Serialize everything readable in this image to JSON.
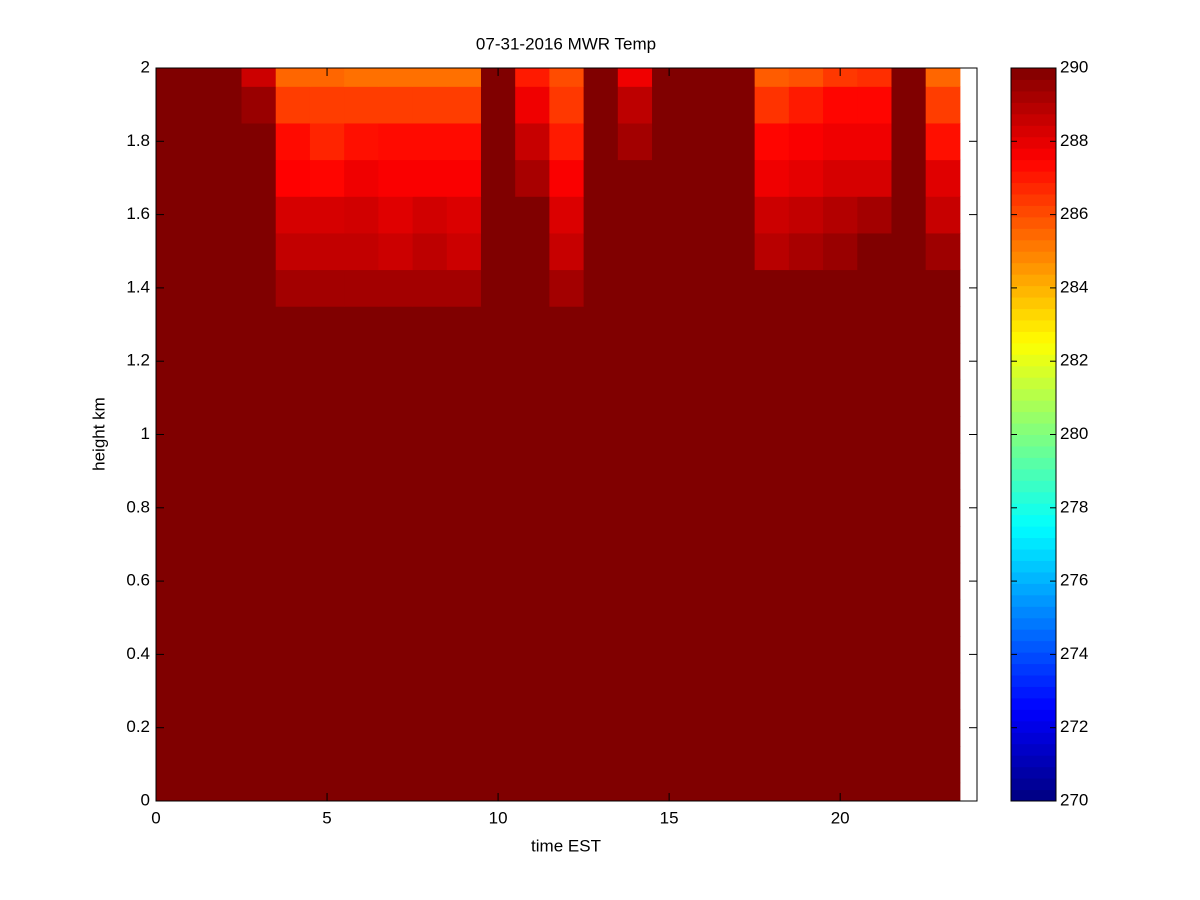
{
  "chart_data": {
    "type": "heatmap",
    "title": "07-31-2016 MWR Temp",
    "x_label": "time EST",
    "y_label": "height km",
    "x": [
      0,
      1,
      2,
      3,
      4,
      5,
      6,
      7,
      8,
      9,
      10,
      11,
      12,
      13,
      14,
      15,
      16,
      17,
      18,
      19,
      20,
      21,
      22,
      23
    ],
    "y": [
      0,
      0.1,
      0.2,
      0.3,
      0.4,
      0.5,
      0.6,
      0.7,
      0.8,
      0.9,
      1,
      1.1,
      1.2,
      1.3,
      1.4,
      1.5,
      1.6,
      1.7,
      1.8,
      1.9,
      2
    ],
    "z": [
      [
        290,
        290,
        290,
        290,
        290,
        290,
        290,
        290,
        290,
        290,
        290,
        290,
        290,
        290,
        290,
        290,
        290,
        290,
        290,
        290,
        290,
        290,
        290,
        290
      ],
      [
        290,
        290,
        290,
        290,
        290,
        290,
        290,
        290,
        290,
        290,
        290,
        290,
        290,
        290,
        290,
        290,
        290,
        290,
        290,
        290,
        290,
        290,
        290,
        290
      ],
      [
        290,
        290,
        290,
        290,
        290,
        290,
        290,
        290,
        290,
        290,
        290,
        290,
        290,
        290,
        290,
        290,
        290,
        290,
        290,
        290,
        290,
        290,
        290,
        290
      ],
      [
        290,
        290,
        290,
        290,
        290,
        290,
        290,
        290,
        290,
        290,
        290,
        290,
        290,
        290,
        290,
        290,
        290,
        290,
        290,
        290,
        290,
        290,
        290,
        290
      ],
      [
        290,
        290,
        290,
        290,
        290,
        290,
        290,
        290,
        290,
        290,
        290,
        290,
        290,
        290,
        290,
        290,
        290,
        290,
        290,
        290,
        290,
        290,
        290,
        290
      ],
      [
        290,
        290,
        290,
        290,
        290,
        290,
        290,
        290,
        290,
        290,
        290,
        290,
        290,
        290,
        290,
        290,
        290,
        290,
        290,
        290,
        290,
        290,
        290,
        290
      ],
      [
        290,
        290,
        290,
        290,
        290,
        290,
        290,
        290,
        290,
        290,
        290,
        290,
        290,
        290,
        290,
        290,
        290,
        290,
        290,
        290,
        290,
        290,
        290,
        290
      ],
      [
        290,
        290,
        290,
        290,
        290,
        290,
        290,
        290,
        290,
        290,
        290,
        290,
        290,
        290,
        290,
        290,
        290,
        290,
        290,
        290,
        290,
        290,
        290,
        290
      ],
      [
        290,
        290,
        290,
        290,
        290,
        290,
        290,
        290,
        290,
        290,
        290,
        290,
        290,
        290,
        290,
        290,
        290,
        290,
        290,
        290,
        290,
        290,
        290,
        290
      ],
      [
        290,
        290,
        290,
        290,
        290,
        290,
        290,
        290,
        290,
        290,
        290,
        290,
        290,
        290,
        290,
        290,
        290,
        290,
        290,
        290,
        290,
        290,
        290,
        290
      ],
      [
        290,
        290,
        290,
        290,
        290,
        290,
        290,
        290,
        290,
        290,
        290,
        290,
        290,
        290,
        290,
        290,
        290,
        290,
        290,
        290,
        290,
        290,
        290,
        290
      ],
      [
        290,
        290,
        290,
        290,
        290,
        290,
        290,
        290,
        290,
        290,
        290,
        290,
        290,
        290,
        290,
        290,
        290,
        290,
        290,
        290,
        290,
        290,
        290,
        290
      ],
      [
        290,
        290,
        290,
        290,
        290,
        290,
        290,
        290,
        290,
        290,
        290,
        290,
        290,
        290,
        290,
        290,
        290,
        290,
        290,
        290,
        290,
        290,
        290,
        290
      ],
      [
        290,
        290,
        290,
        290,
        290,
        290,
        290,
        290,
        290,
        290,
        290,
        290,
        290,
        290,
        290,
        290,
        290,
        290,
        290,
        290,
        290,
        290,
        290,
        290
      ],
      [
        290,
        290,
        290,
        290,
        289.3,
        289.3,
        289.3,
        289.3,
        289.3,
        289.3,
        290,
        290,
        289.3,
        290,
        290,
        290,
        290,
        290,
        290,
        290,
        290,
        290,
        290,
        290
      ],
      [
        290,
        290,
        290,
        290,
        288.7,
        288.7,
        288.7,
        288.5,
        288.8,
        288.5,
        290,
        290,
        288.6,
        290,
        290,
        290,
        290,
        290,
        288.9,
        289.2,
        289.5,
        290,
        290,
        289.4
      ],
      [
        290,
        290,
        290,
        290,
        288.3,
        288.3,
        288.4,
        288.1,
        288.4,
        288.2,
        290,
        290,
        288.2,
        290,
        290,
        290,
        290,
        290,
        288.5,
        288.7,
        289,
        289.3,
        290,
        288.6
      ],
      [
        290,
        290,
        290,
        290,
        287.5,
        287.4,
        287.8,
        287.6,
        287.6,
        287.6,
        290,
        289.2,
        287.6,
        290,
        290,
        290,
        290,
        290,
        287.8,
        288,
        288.3,
        288.3,
        290,
        288.1
      ],
      [
        290,
        290,
        290,
        290,
        287.3,
        286.8,
        287.2,
        287.3,
        287.3,
        287.3,
        290,
        288.6,
        287,
        290,
        289.3,
        290,
        290,
        290,
        287.4,
        287.6,
        287.8,
        287.8,
        290,
        287.2
      ],
      [
        290,
        290,
        290,
        289.5,
        286.3,
        286.3,
        286.3,
        286.3,
        286.3,
        286.3,
        290,
        287.8,
        286.4,
        290,
        288.8,
        290,
        290,
        290,
        286.5,
        287,
        287.4,
        287.4,
        290,
        286.3
      ],
      [
        290,
        290,
        290,
        288.5,
        285.5,
        285.5,
        285.3,
        285.3,
        285.3,
        285.3,
        290,
        287,
        286,
        290,
        287.8,
        290,
        290,
        290,
        285.7,
        285.9,
        286.4,
        286.6,
        290,
        285.5
      ]
    ],
    "xlim": [
      0,
      24
    ],
    "xticks": [
      0,
      5,
      10,
      15,
      20
    ],
    "ylim": [
      0,
      2
    ],
    "yticks": [
      0,
      0.2,
      0.4,
      0.6,
      0.8,
      1,
      1.2,
      1.4,
      1.6,
      1.8,
      2
    ],
    "clim": [
      270,
      290
    ],
    "cticks": [
      270,
      272,
      274,
      276,
      278,
      280,
      282,
      284,
      286,
      288,
      290
    ],
    "colormap": "jet"
  }
}
